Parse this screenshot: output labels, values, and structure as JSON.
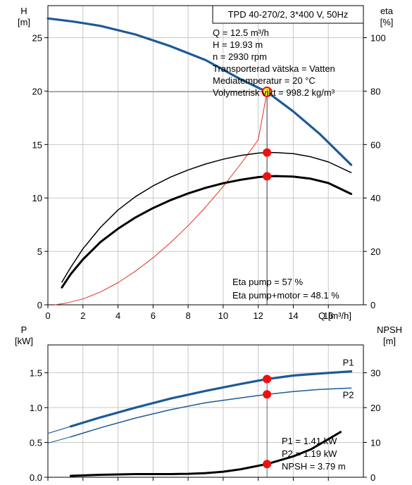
{
  "colors": {
    "head_curve": "#1e5a96",
    "p1_curve": "#1e5a96",
    "p2_curve": "#1e5a96",
    "eta_curve": "#e03020",
    "black_curve": "#000000",
    "marker": "#ee1111",
    "grid": "#c8c8c8",
    "op_line": "#888888"
  },
  "chart_data": [
    {
      "type": "line",
      "title": "TPD 40-270/2, 3*400 V, 50Hz",
      "xlabel": "Q [m³/h]",
      "ylabel": "H [m]",
      "y2label": "eta [%]",
      "xlim": [
        0,
        18
      ],
      "ylim": [
        0,
        28
      ],
      "y2lim": [
        0,
        112
      ],
      "x_ticks": [
        "0",
        "2",
        "4",
        "6",
        "8",
        "10",
        "12",
        "14",
        "16"
      ],
      "y_ticks": [
        "0",
        "5",
        "10",
        "15",
        "20",
        "25"
      ],
      "y2_ticks": [
        "0",
        "20",
        "40",
        "60",
        "80",
        "100"
      ],
      "grid": true,
      "info_lines": [
        "Q = 12.5 m³/h",
        "H = 19.93 m",
        "n = 2930 rpm",
        "Transporterad vätska = Vatten",
        "Mediatemperatur = 20 °C",
        "Volymetrisk vikt = 998.2 kg/m³"
      ],
      "eta_lines": [
        "Eta pump = 57 %",
        "Eta pump+motor = 48.1 %"
      ],
      "series": [
        {
          "key": "head",
          "axis": "left",
          "x": [
            0,
            0.5,
            1.5,
            3,
            5,
            7,
            9,
            11,
            12.5,
            14,
            15.5,
            17.3
          ],
          "values": [
            26.8,
            26.7,
            26.5,
            26.1,
            25.3,
            24.2,
            22.9,
            21.1,
            19.93,
            18.1,
            16.0,
            13.1
          ]
        },
        {
          "key": "eta",
          "axis": "right",
          "x": [
            0.4,
            1,
            2,
            3,
            4,
            5,
            6,
            7,
            8,
            9,
            10,
            11,
            12,
            12.5
          ],
          "values": [
            0,
            0.6,
            2.2,
            4.8,
            8.3,
            12.6,
            17.6,
            23.3,
            29.6,
            36.6,
            44.3,
            52.7,
            61.8,
            79.7
          ]
        },
        {
          "key": "eta_pump",
          "axis": "right",
          "x": [
            0.8,
            1.3,
            2,
            3,
            4,
            5,
            6,
            7,
            8,
            9,
            10,
            11,
            12,
            12.5,
            13,
            14,
            15,
            16,
            17.3
          ],
          "values": [
            8.5,
            14,
            21,
            29,
            35.5,
            40.5,
            44.5,
            47.8,
            50.5,
            52.7,
            54.5,
            55.9,
            56.8,
            57.0,
            57.0,
            56.6,
            55.4,
            53.5,
            49.5
          ]
        },
        {
          "key": "eta_total",
          "axis": "right",
          "x": [
            0.8,
            1.3,
            2,
            3,
            4,
            5,
            6,
            7,
            8,
            9,
            10,
            11,
            12,
            12.5,
            13,
            14,
            15,
            16,
            17.3
          ],
          "values": [
            6.5,
            11.5,
            17,
            23.5,
            28.5,
            32.7,
            36.2,
            39.2,
            41.7,
            43.8,
            45.5,
            46.8,
            47.8,
            48.1,
            48.2,
            48.0,
            47.2,
            45.6,
            41.5
          ]
        }
      ],
      "operating_point": {
        "x": 12.5,
        "y": 19.93,
        "eta_pump": 57,
        "eta_total": 48.1
      }
    },
    {
      "type": "line",
      "xlabel": "",
      "ylabel": "P [kW]",
      "y2label": "NPSH [m]",
      "xlim": [
        0,
        18
      ],
      "ylim": [
        0,
        1.9
      ],
      "y2lim": [
        0,
        38
      ],
      "y_ticks": [
        "0.0",
        "0.5",
        "1.0",
        "1.5"
      ],
      "y2_ticks": [
        "0",
        "10",
        "20",
        "30"
      ],
      "grid": true,
      "info_lines": [
        "P1 = 1.41 kW",
        "P2 = 1.19 kW",
        "NPSH = 3.79 m"
      ],
      "series": [
        {
          "key": "p1",
          "name": "P1",
          "axis": "left",
          "x": [
            1.3,
            3,
            5,
            7,
            9,
            11,
            12.5,
            14,
            15.5,
            17.3
          ],
          "values": [
            0.73,
            0.86,
            1.0,
            1.13,
            1.24,
            1.34,
            1.41,
            1.46,
            1.49,
            1.52
          ]
        },
        {
          "key": "p1_ext",
          "axis": "left",
          "x": [
            0,
            1.3
          ],
          "values": [
            0.63,
            0.73
          ]
        },
        {
          "key": "p2",
          "name": "P2",
          "axis": "left",
          "x": [
            1.3,
            3,
            5,
            7,
            9,
            11,
            12.5,
            14,
            15.5,
            17.3
          ],
          "values": [
            0.58,
            0.71,
            0.85,
            0.97,
            1.07,
            1.14,
            1.19,
            1.23,
            1.26,
            1.28
          ]
        },
        {
          "key": "p2_ext",
          "axis": "left",
          "x": [
            0,
            1.3
          ],
          "values": [
            0.49,
            0.58
          ]
        },
        {
          "key": "npsh",
          "axis": "right",
          "x": [
            1.3,
            3,
            5,
            7,
            8,
            9,
            10,
            11,
            12.5,
            14,
            15,
            16.7
          ],
          "values": [
            0.4,
            0.7,
            0.9,
            0.9,
            1.0,
            1.2,
            1.6,
            2.3,
            3.79,
            6.0,
            8.0,
            13.0
          ]
        }
      ],
      "operating_point": {
        "x": 12.5,
        "p1": 1.41,
        "p2": 1.19,
        "npsh": 3.79
      }
    }
  ]
}
